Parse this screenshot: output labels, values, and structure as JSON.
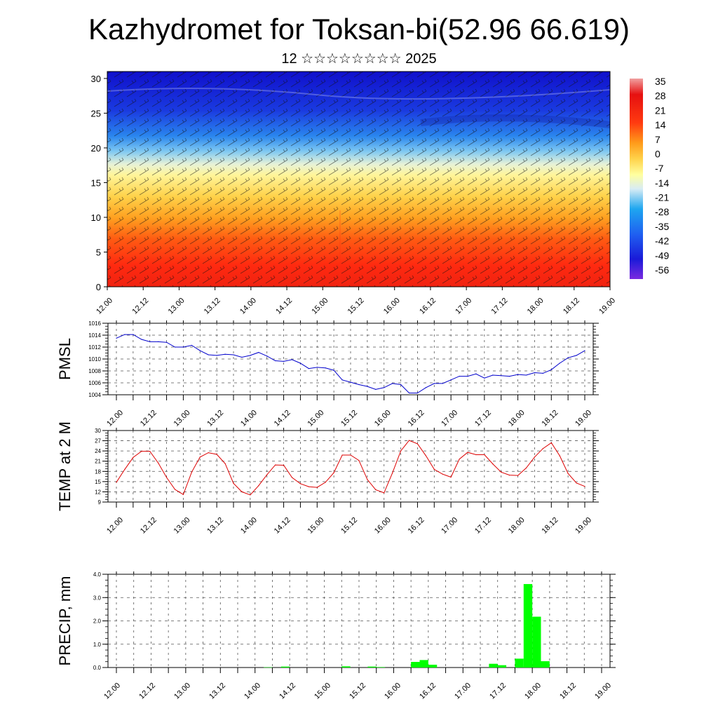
{
  "title": "Kazhydromet for Toksan-bi(52.96 66.619)",
  "subtitle": "12 ☆☆☆☆☆☆☆☆ 2025",
  "x_ticks": [
    "12.00",
    "12.12",
    "13.00",
    "13.12",
    "14.00",
    "14.12",
    "15.00",
    "15.12",
    "16.00",
    "16.12",
    "17.00",
    "17.12",
    "18.00",
    "18.12",
    "19.00"
  ],
  "chart_data": [
    {
      "type": "heatmap",
      "name": "temperature-cross-section",
      "x_ticks": [
        "12.00",
        "12.12",
        "13.00",
        "13.12",
        "14.00",
        "14.12",
        "15.00",
        "15.12",
        "16.00",
        "16.12",
        "17.00",
        "17.12",
        "18.00",
        "18.12",
        "19.00"
      ],
      "y_ticks": [
        "0",
        "5",
        "10",
        "15",
        "20",
        "25",
        "30"
      ],
      "ylim": [
        0,
        31
      ],
      "colorbar_labels": [
        "35",
        "28",
        "21",
        "14",
        "7",
        "0",
        "-7",
        "-14",
        "-21",
        "-28",
        "-35",
        "-42",
        "-49",
        "-56"
      ],
      "colors": [
        "#6a1fe0",
        "#1a1ad8",
        "#1f5ef0",
        "#1ea6f0",
        "#c8e6f4",
        "#ffffa0",
        "#ffd24a",
        "#ff9a1a",
        "#ff4a10",
        "#e61010",
        "#f0a0a0"
      ],
      "overlay": "wind barbs"
    },
    {
      "type": "line",
      "ylabel": "PMSL",
      "ylim": [
        1004,
        1016
      ],
      "y_ticks": [
        "1004",
        "1006",
        "1008",
        "1010",
        "1012",
        "1014",
        "1016"
      ],
      "color": "#0000cc",
      "x": [
        0,
        3,
        6,
        9,
        12,
        15,
        18,
        21,
        24,
        27,
        30,
        33,
        36,
        39,
        42,
        45,
        48,
        51,
        54,
        57,
        60,
        63,
        66,
        69,
        72,
        75,
        78,
        81,
        84,
        87,
        90,
        93,
        96,
        99,
        102,
        105,
        108,
        111,
        114,
        117,
        120,
        123,
        126,
        129,
        132,
        135,
        138,
        141,
        144,
        147,
        150,
        153,
        156,
        159,
        162,
        165,
        168
      ],
      "values": [
        1013.5,
        1014.1,
        1014.1,
        1013.3,
        1012.9,
        1012.9,
        1012.8,
        1012.0,
        1012.0,
        1012.3,
        1011.4,
        1010.7,
        1010.6,
        1010.8,
        1010.7,
        1010.3,
        1010.6,
        1011.1,
        1010.5,
        1009.7,
        1009.6,
        1009.9,
        1009.3,
        1008.4,
        1008.6,
        1008.5,
        1008.1,
        1006.5,
        1006.1,
        1005.7,
        1005.4,
        1004.9,
        1005.2,
        1005.9,
        1005.7,
        1004.3,
        1004.3,
        1005.2,
        1005.9,
        1005.9,
        1006.5,
        1007.1,
        1007.1,
        1007.5,
        1006.8,
        1007.3,
        1007.2,
        1007.1,
        1007.4,
        1007.3,
        1007.7,
        1007.6,
        1008.2,
        1009.3,
        1010.2,
        1010.6,
        1011.4
      ]
    },
    {
      "type": "line",
      "ylabel": "TEMP at 2 M",
      "ylim": [
        9,
        30
      ],
      "y_ticks": [
        "9",
        "12",
        "15",
        "18",
        "21",
        "24",
        "27",
        "30"
      ],
      "color": "#dd0000",
      "x": [
        0,
        3,
        6,
        9,
        12,
        15,
        18,
        21,
        24,
        27,
        30,
        33,
        36,
        39,
        42,
        45,
        48,
        51,
        54,
        57,
        60,
        63,
        66,
        69,
        72,
        75,
        78,
        81,
        84,
        87,
        90,
        93,
        96,
        99,
        102,
        105,
        108,
        111,
        114,
        117,
        120,
        123,
        126,
        129,
        132,
        135,
        138,
        141,
        144,
        147,
        150,
        153,
        156,
        159,
        162,
        165,
        168
      ],
      "values": [
        14.8,
        18.6,
        22.1,
        23.9,
        23.9,
        20.5,
        16.2,
        12.7,
        11.2,
        17.8,
        22.2,
        23.5,
        23.0,
        20.3,
        14.5,
        12.0,
        11.1,
        13.8,
        17.0,
        19.9,
        19.8,
        16.2,
        14.4,
        13.5,
        13.3,
        14.8,
        17.6,
        22.8,
        22.8,
        21.2,
        15.6,
        12.6,
        11.7,
        17.5,
        24.0,
        27.1,
        26.1,
        22.6,
        18.6,
        17.2,
        16.3,
        21.6,
        23.6,
        22.9,
        22.9,
        20.2,
        17.8,
        16.9,
        16.8,
        19.0,
        22.2,
        24.7,
        26.4,
        22.6,
        17.4,
        14.6,
        13.6
      ]
    },
    {
      "type": "bar",
      "ylabel": "PRECIP, mm",
      "ylim": [
        0,
        4
      ],
      "y_ticks": [
        "0.0",
        "1.0",
        "2.0",
        "3.0",
        "4.0"
      ],
      "color": "#00ff00",
      "x": [
        51,
        57,
        78,
        87,
        90,
        102,
        105,
        108,
        129,
        132,
        138,
        141,
        144,
        147
      ],
      "values": [
        0.01,
        0.04,
        0.05,
        0.04,
        0.02,
        0.24,
        0.32,
        0.12,
        0.16,
        0.1,
        0.38,
        3.58,
        2.18,
        0.27
      ]
    }
  ]
}
